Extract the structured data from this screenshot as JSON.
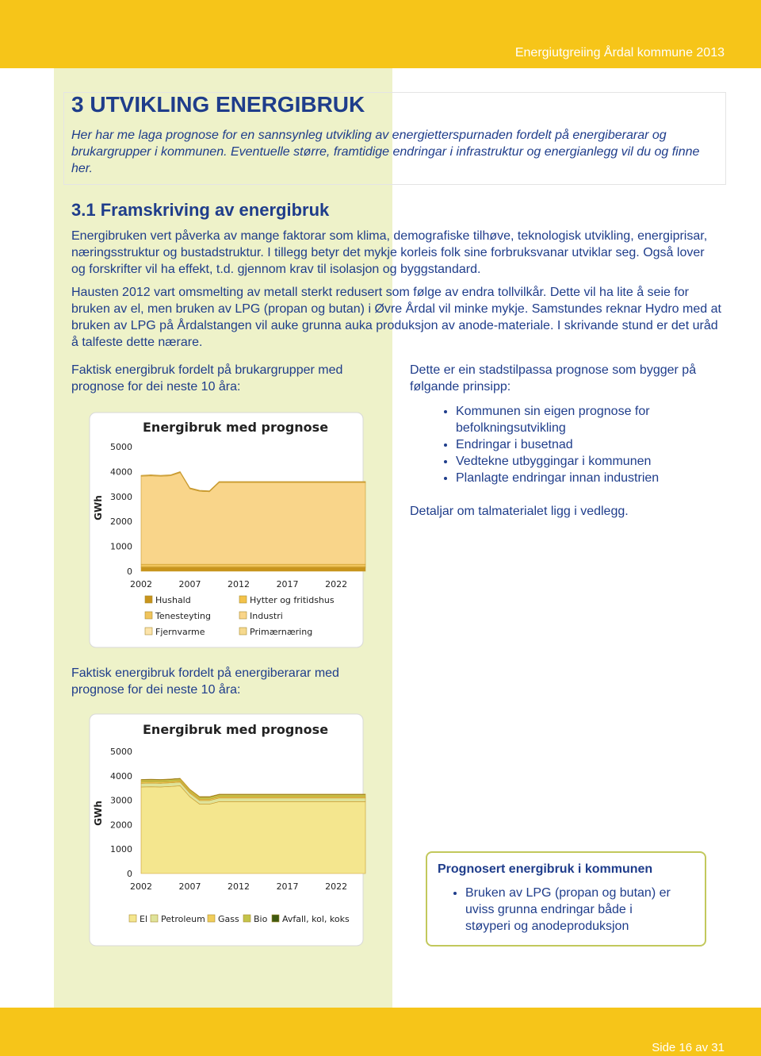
{
  "header": {
    "title": "Energiutgreiing Årdal kommune 2013"
  },
  "section": {
    "heading": "3 UTVIKLING ENERGIBRUK",
    "intro": "Her har me laga prognose for en sannsynleg utvikling av energietterspurnaden fordelt på energiberarar og brukargrupper i kommunen. Eventuelle større, framtidige endringar i infrastruktur og energianlegg vil du og finne her."
  },
  "subsection": {
    "heading": "3.1 Framskriving av energibruk",
    "paragraphs": [
      "Energibruken vert påverka av mange faktorar som klima, demografiske tilhøve, teknologisk utvikling, energiprisar, næringsstruktur og bustadstruktur. I tillegg betyr det mykje korleis folk sine forbruksvanar utviklar seg. Også lover og forskrifter vil ha effekt, t.d. gjennom krav til isolasjon og byggstandard.",
      "Hausten 2012 vart omsmelting av metall sterkt redusert som følge av endra tollvilkår. Dette vil ha lite å seie for bruken av el, men bruken av LPG (propan og butan) i Øvre Årdal vil minke mykje. Samstundes reknar Hydro med at bruken av LPG på Årdalstangen vil auke grunna auka produksjon av anode-materiale. I skrivande stund er det uråd å talfeste dette nærare."
    ]
  },
  "captions": [
    "Faktisk energibruk fordelt på brukargrupper med prognose for dei neste 10 åra:",
    "Faktisk energibruk fordelt på energiberarar med prognose for dei neste 10 åra:"
  ],
  "right": {
    "intro": "Dette er ein stadstilpassa prognose som bygger på følgande prinsipp:",
    "bullets": [
      "Kommunen sin eigen prognose for befolkningsutvikling",
      "Endringar i busetnad",
      "Vedtekne utbyggingar i kommunen",
      "Planlagte endringar innan industrien"
    ],
    "detail": "Detaljar om talmaterialet ligg i vedlegg."
  },
  "box": {
    "title": "Prognosert energibruk i kommunen",
    "bullets": [
      "Bruken av LPG (propan og butan) er uviss grunna endringar både i støyperi og anodeproduksjon"
    ]
  },
  "footer": {
    "page": "Side 16 av 31"
  },
  "chart_data": [
    {
      "type": "stacked-area",
      "title": "Energibruk med prognose",
      "y_label": "GWh",
      "x": [
        2002,
        2003,
        2004,
        2005,
        2006,
        2007,
        2008,
        2009,
        2010,
        2011,
        2012,
        2013,
        2014,
        2015,
        2016,
        2017,
        2018,
        2019,
        2020,
        2021,
        2022,
        2023,
        2024,
        2025
      ],
      "xlim": [
        2002,
        2025
      ],
      "xticks": [
        2002,
        2007,
        2012,
        2017,
        2022
      ],
      "ylim": [
        0,
        5000
      ],
      "yticks": [
        0,
        1000,
        2000,
        3000,
        4000,
        5000
      ],
      "series": [
        {
          "name": "Hushald",
          "color": "#c8941c",
          "values": [
            150,
            150,
            150,
            150,
            150,
            150,
            150,
            150,
            150,
            150,
            150,
            150,
            150,
            150,
            150,
            150,
            150,
            150,
            150,
            150,
            150,
            150,
            150,
            150
          ]
        },
        {
          "name": "Hytter og fritidshus",
          "color": "#f3c24a",
          "values": [
            30,
            30,
            30,
            30,
            30,
            30,
            30,
            30,
            30,
            30,
            30,
            30,
            30,
            30,
            30,
            30,
            30,
            30,
            30,
            30,
            30,
            30,
            30,
            30
          ]
        },
        {
          "name": "Tenesteyting",
          "color": "#f0c45c",
          "values": [
            100,
            100,
            100,
            100,
            100,
            100,
            100,
            100,
            100,
            100,
            100,
            100,
            100,
            100,
            100,
            100,
            100,
            100,
            100,
            100,
            100,
            100,
            100,
            100
          ]
        },
        {
          "name": "Industri",
          "color": "#f9d58a",
          "values": [
            3530,
            3550,
            3530,
            3550,
            3680,
            3030,
            2930,
            2910,
            3280,
            3280,
            3280,
            3280,
            3280,
            3280,
            3280,
            3280,
            3280,
            3280,
            3280,
            3280,
            3280,
            3280,
            3280,
            3280
          ]
        },
        {
          "name": "Fjernvarme",
          "color": "#fce4ab",
          "values": [
            20,
            20,
            20,
            20,
            20,
            20,
            20,
            20,
            20,
            20,
            20,
            20,
            20,
            20,
            20,
            20,
            20,
            20,
            20,
            20,
            20,
            20,
            20,
            20
          ]
        },
        {
          "name": "Primærnæring",
          "color": "#f6d98e",
          "values": [
            20,
            20,
            20,
            20,
            20,
            20,
            20,
            20,
            20,
            20,
            20,
            20,
            20,
            20,
            20,
            20,
            20,
            20,
            20,
            20,
            20,
            20,
            20,
            20
          ]
        }
      ]
    },
    {
      "type": "stacked-area",
      "title": "Energibruk med prognose",
      "y_label": "GWh",
      "x": [
        2002,
        2003,
        2004,
        2005,
        2006,
        2007,
        2008,
        2009,
        2010,
        2011,
        2012,
        2013,
        2014,
        2015,
        2016,
        2017,
        2018,
        2019,
        2020,
        2021,
        2022,
        2023,
        2024,
        2025
      ],
      "xlim": [
        2002,
        2025
      ],
      "xticks": [
        2002,
        2007,
        2012,
        2017,
        2022
      ],
      "ylim": [
        0,
        5000
      ],
      "yticks": [
        0,
        1000,
        2000,
        3000,
        4000,
        5000
      ],
      "series": [
        {
          "name": "El",
          "color": "#f4e68e",
          "values": [
            3540,
            3550,
            3540,
            3560,
            3590,
            3140,
            2840,
            2840,
            2940,
            2940,
            2940,
            2940,
            2940,
            2940,
            2940,
            2940,
            2940,
            2940,
            2940,
            2940,
            2940,
            2940,
            2940,
            2940
          ]
        },
        {
          "name": "Petroleum",
          "color": "#dfe39a",
          "values": [
            150,
            150,
            150,
            150,
            150,
            150,
            150,
            150,
            150,
            150,
            150,
            150,
            150,
            150,
            150,
            150,
            150,
            150,
            150,
            150,
            150,
            150,
            150,
            150
          ]
        },
        {
          "name": "Gass",
          "color": "#f1cd5a",
          "values": [
            50,
            50,
            50,
            50,
            50,
            50,
            50,
            50,
            50,
            50,
            50,
            50,
            50,
            50,
            50,
            50,
            50,
            50,
            50,
            50,
            50,
            50,
            50,
            50
          ]
        },
        {
          "name": "Bio",
          "color": "#c4c44a",
          "values": [
            80,
            80,
            80,
            80,
            80,
            80,
            80,
            80,
            80,
            80,
            80,
            80,
            80,
            80,
            80,
            80,
            80,
            80,
            80,
            80,
            80,
            80,
            80,
            80
          ]
        },
        {
          "name": "Avfall, kol, koks",
          "color": "#3f5a10",
          "values": [
            30,
            30,
            30,
            30,
            30,
            30,
            30,
            30,
            30,
            30,
            30,
            30,
            30,
            30,
            30,
            30,
            30,
            30,
            30,
            30,
            30,
            30,
            30,
            30
          ]
        }
      ]
    }
  ]
}
